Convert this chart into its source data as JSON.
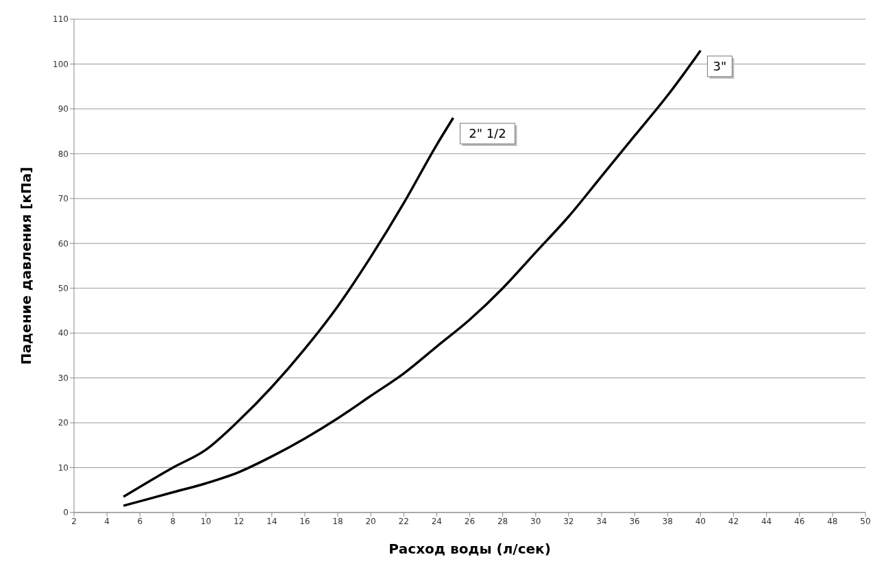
{
  "chart_data": {
    "type": "line",
    "xlabel": "Расход воды (л/сек)",
    "ylabel": "Падение давления [кПа]",
    "series": [
      {
        "name": "2\" 1/2",
        "color": "#000000",
        "x": [
          5,
          8,
          10,
          12,
          14,
          16,
          18,
          20,
          22,
          24,
          25
        ],
        "values": [
          3.5,
          10,
          14,
          20.5,
          28,
          36.5,
          46,
          57,
          69,
          82,
          88
        ]
      },
      {
        "name": "3\"",
        "color": "#000000",
        "x": [
          5,
          8,
          10,
          12,
          14,
          16,
          18,
          20,
          22,
          24,
          26,
          28,
          30,
          32,
          34,
          36,
          38,
          40
        ],
        "values": [
          1.5,
          4.5,
          6.5,
          9,
          12.5,
          16.5,
          21,
          26,
          31,
          37,
          43,
          50,
          58,
          66,
          75,
          84,
          93,
          103
        ]
      }
    ],
    "xlim": [
      2,
      50
    ],
    "xticks": [
      2,
      4,
      6,
      8,
      10,
      12,
      14,
      16,
      18,
      20,
      22,
      24,
      26,
      28,
      30,
      32,
      34,
      36,
      38,
      40,
      42,
      44,
      46,
      48,
      50
    ],
    "ylim": [
      0,
      110
    ],
    "yticks": [
      0,
      10,
      20,
      30,
      40,
      50,
      60,
      70,
      80,
      90,
      100,
      110
    ],
    "grid": "y",
    "marker": "none",
    "line_style": "solid"
  }
}
